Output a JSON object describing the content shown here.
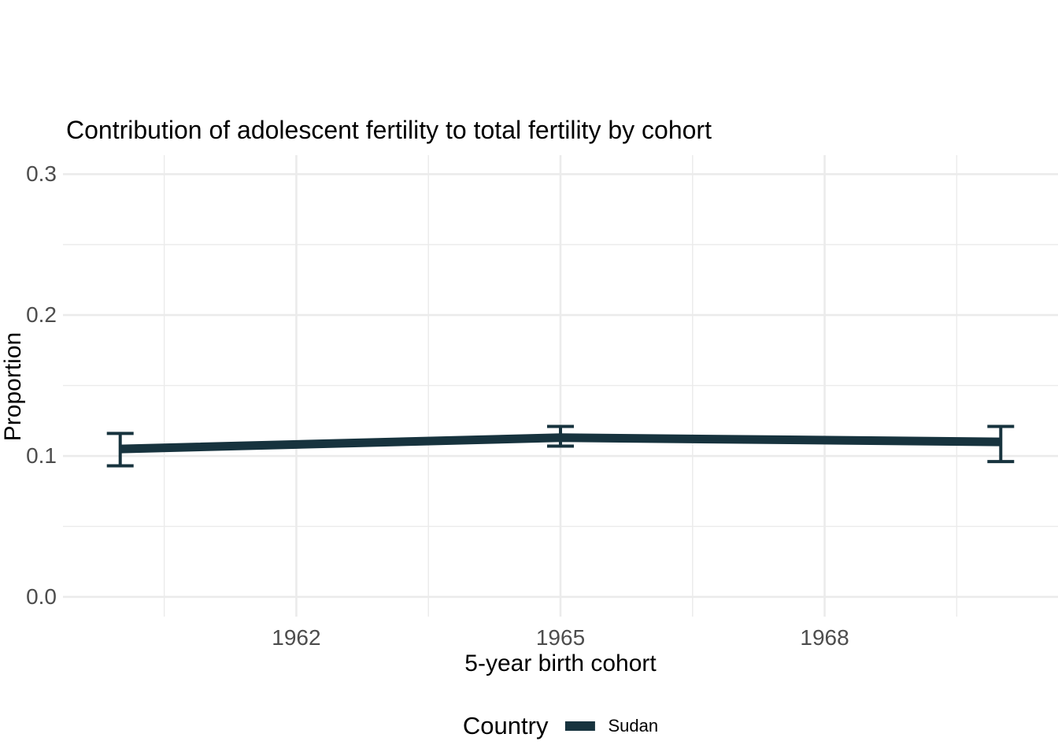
{
  "chart_data": {
    "type": "line",
    "title": "Contribution of adolescent fertility to total fertility by cohort",
    "xlabel": "5-year birth cohort",
    "ylabel": "Proportion",
    "xlim": [
      1959.35,
      1970.65
    ],
    "ylim": [
      -0.014,
      0.3135
    ],
    "grid": true,
    "x_major_ticks": [
      {
        "value": 1962,
        "label": "1962"
      },
      {
        "value": 1965,
        "label": "1965"
      },
      {
        "value": 1968,
        "label": "1968"
      }
    ],
    "x_minor_ticks": [
      1960.5,
      1963.5,
      1966.5,
      1969.5
    ],
    "y_major_ticks": [
      {
        "value": 0.0,
        "label": "0.0"
      },
      {
        "value": 0.1,
        "label": "0.1"
      },
      {
        "value": 0.2,
        "label": "0.2"
      },
      {
        "value": 0.3,
        "label": "0.3"
      }
    ],
    "y_minor_ticks": [
      0.05,
      0.15,
      0.25
    ],
    "legend": {
      "title": "Country",
      "position": "bottom",
      "entries": [
        {
          "label": "Sudan",
          "color": "#17333E"
        }
      ]
    },
    "series": [
      {
        "name": "Sudan",
        "color": "#17333E",
        "points": [
          {
            "x": 1960,
            "y": 0.105,
            "ymin": 0.093,
            "ymax": 0.116
          },
          {
            "x": 1965,
            "y": 0.113,
            "ymin": 0.107,
            "ymax": 0.121
          },
          {
            "x": 1970,
            "y": 0.11,
            "ymin": 0.096,
            "ymax": 0.121
          }
        ]
      }
    ]
  },
  "colors": {
    "background": "#FFFFFF",
    "grid": "#EBEBEB",
    "tick_label": "#4D4D4D",
    "text": "#000000"
  }
}
